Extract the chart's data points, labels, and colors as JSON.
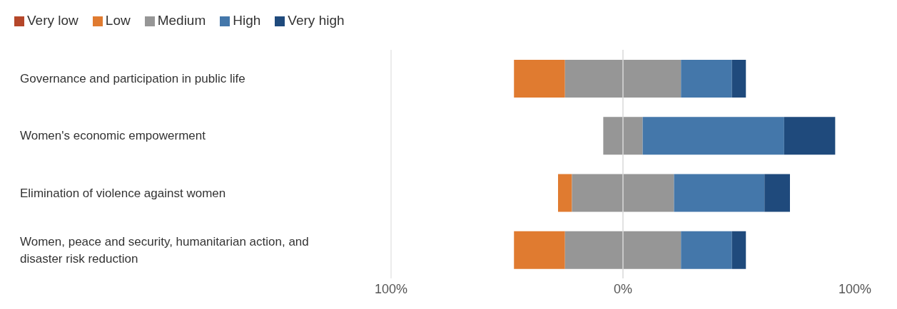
{
  "chart_data": {
    "type": "bar",
    "orientation": "horizontal",
    "categories": [
      "Governance and participation in public life",
      "Women's economic empowerment",
      "Elimination of violence against women",
      "Women, peace and security, humanitarian action, and disaster risk reduction"
    ],
    "series": [
      {
        "name": "Very low",
        "color": "#b5472a",
        "values": [
          0,
          0,
          0,
          0
        ]
      },
      {
        "name": "Low",
        "color": "#e07b30",
        "values": [
          22,
          0,
          6,
          22
        ],
        "base": [
          -47,
          null,
          -28,
          -47
        ]
      },
      {
        "name": "Medium",
        "color": "#969696",
        "values": [
          50,
          17,
          44,
          50
        ],
        "base": [
          -25,
          -8.5,
          -22,
          -25
        ]
      },
      {
        "name": "High",
        "color": "#4477aa",
        "values": [
          22,
          61,
          39,
          22
        ],
        "base": [
          25,
          8.5,
          22,
          25
        ]
      },
      {
        "name": "Very high",
        "color": "#1f4a7c",
        "values": [
          6,
          22,
          11,
          6
        ],
        "base": [
          47,
          69.5,
          61,
          47
        ]
      }
    ],
    "xlim": [
      -100,
      100
    ],
    "xticks": [
      {
        "value": -100,
        "label": "100%"
      },
      {
        "value": 0,
        "label": "0%"
      },
      {
        "value": 100,
        "label": "100%"
      }
    ],
    "ref_lines": [
      {
        "axis": "x",
        "value": 0,
        "color": "#d9d9d9"
      }
    ],
    "legend": "top left"
  }
}
